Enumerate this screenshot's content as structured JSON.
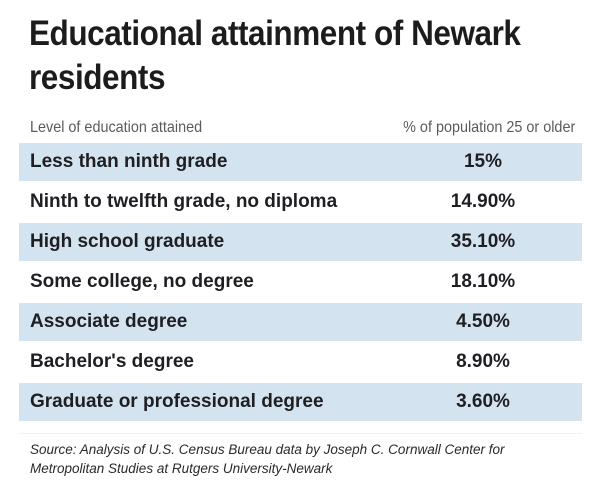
{
  "title": {
    "text": "Educational attainment of Newark residents"
  },
  "columns": {
    "label": "Level of education attained",
    "value": "% of population 25 or older"
  },
  "rows": [
    {
      "label": "Less than ninth grade",
      "value": "15%"
    },
    {
      "label": "Ninth to twelfth grade, no diploma",
      "value": "14.90%"
    },
    {
      "label": "High school graduate",
      "value": "35.10%"
    },
    {
      "label": "Some college, no degree",
      "value": "18.10%"
    },
    {
      "label": "Associate degree",
      "value": "4.50%"
    },
    {
      "label": "Bachelor's degree",
      "value": "8.90%"
    },
    {
      "label": "Graduate or professional degree",
      "value": "3.60%"
    }
  ],
  "source": {
    "text": "Source: Analysis of U.S. Census Bureau data by Joseph C. Cornwall Center for Metropolitan Studies at Rutgers University-Newark"
  },
  "colors": {
    "row_band": "#d3e3ef",
    "header_text": "#5a5b5e",
    "title_text": "#1c1c1c",
    "body_text": "#1f1f23",
    "background": "#ffffff"
  },
  "chart_data": {
    "type": "table",
    "title": "Educational attainment of Newark residents",
    "columns": [
      "Level of education attained",
      "% of population 25 or older"
    ],
    "categories": [
      "Less than ninth grade",
      "Ninth to twelfth grade, no diploma",
      "High school graduate",
      "Some college, no degree",
      "Associate degree",
      "Bachelor's degree",
      "Graduate or professional degree"
    ],
    "values": [
      15,
      14.9,
      35.1,
      18.1,
      4.5,
      8.9,
      3.6
    ],
    "value_labels": [
      "15%",
      "14.90%",
      "35.10%",
      "18.10%",
      "4.50%",
      "8.90%",
      "3.60%"
    ],
    "unit": "percent of population 25 or older",
    "source": "Source: Analysis of U.S. Census Bureau data by Joseph C. Cornwall Center for Metropolitan Studies at Rutgers University-Newark",
    "layout": {
      "zebra_striping": true,
      "striped_rows": "odd",
      "stripe_color": "#d3e3ef"
    }
  }
}
